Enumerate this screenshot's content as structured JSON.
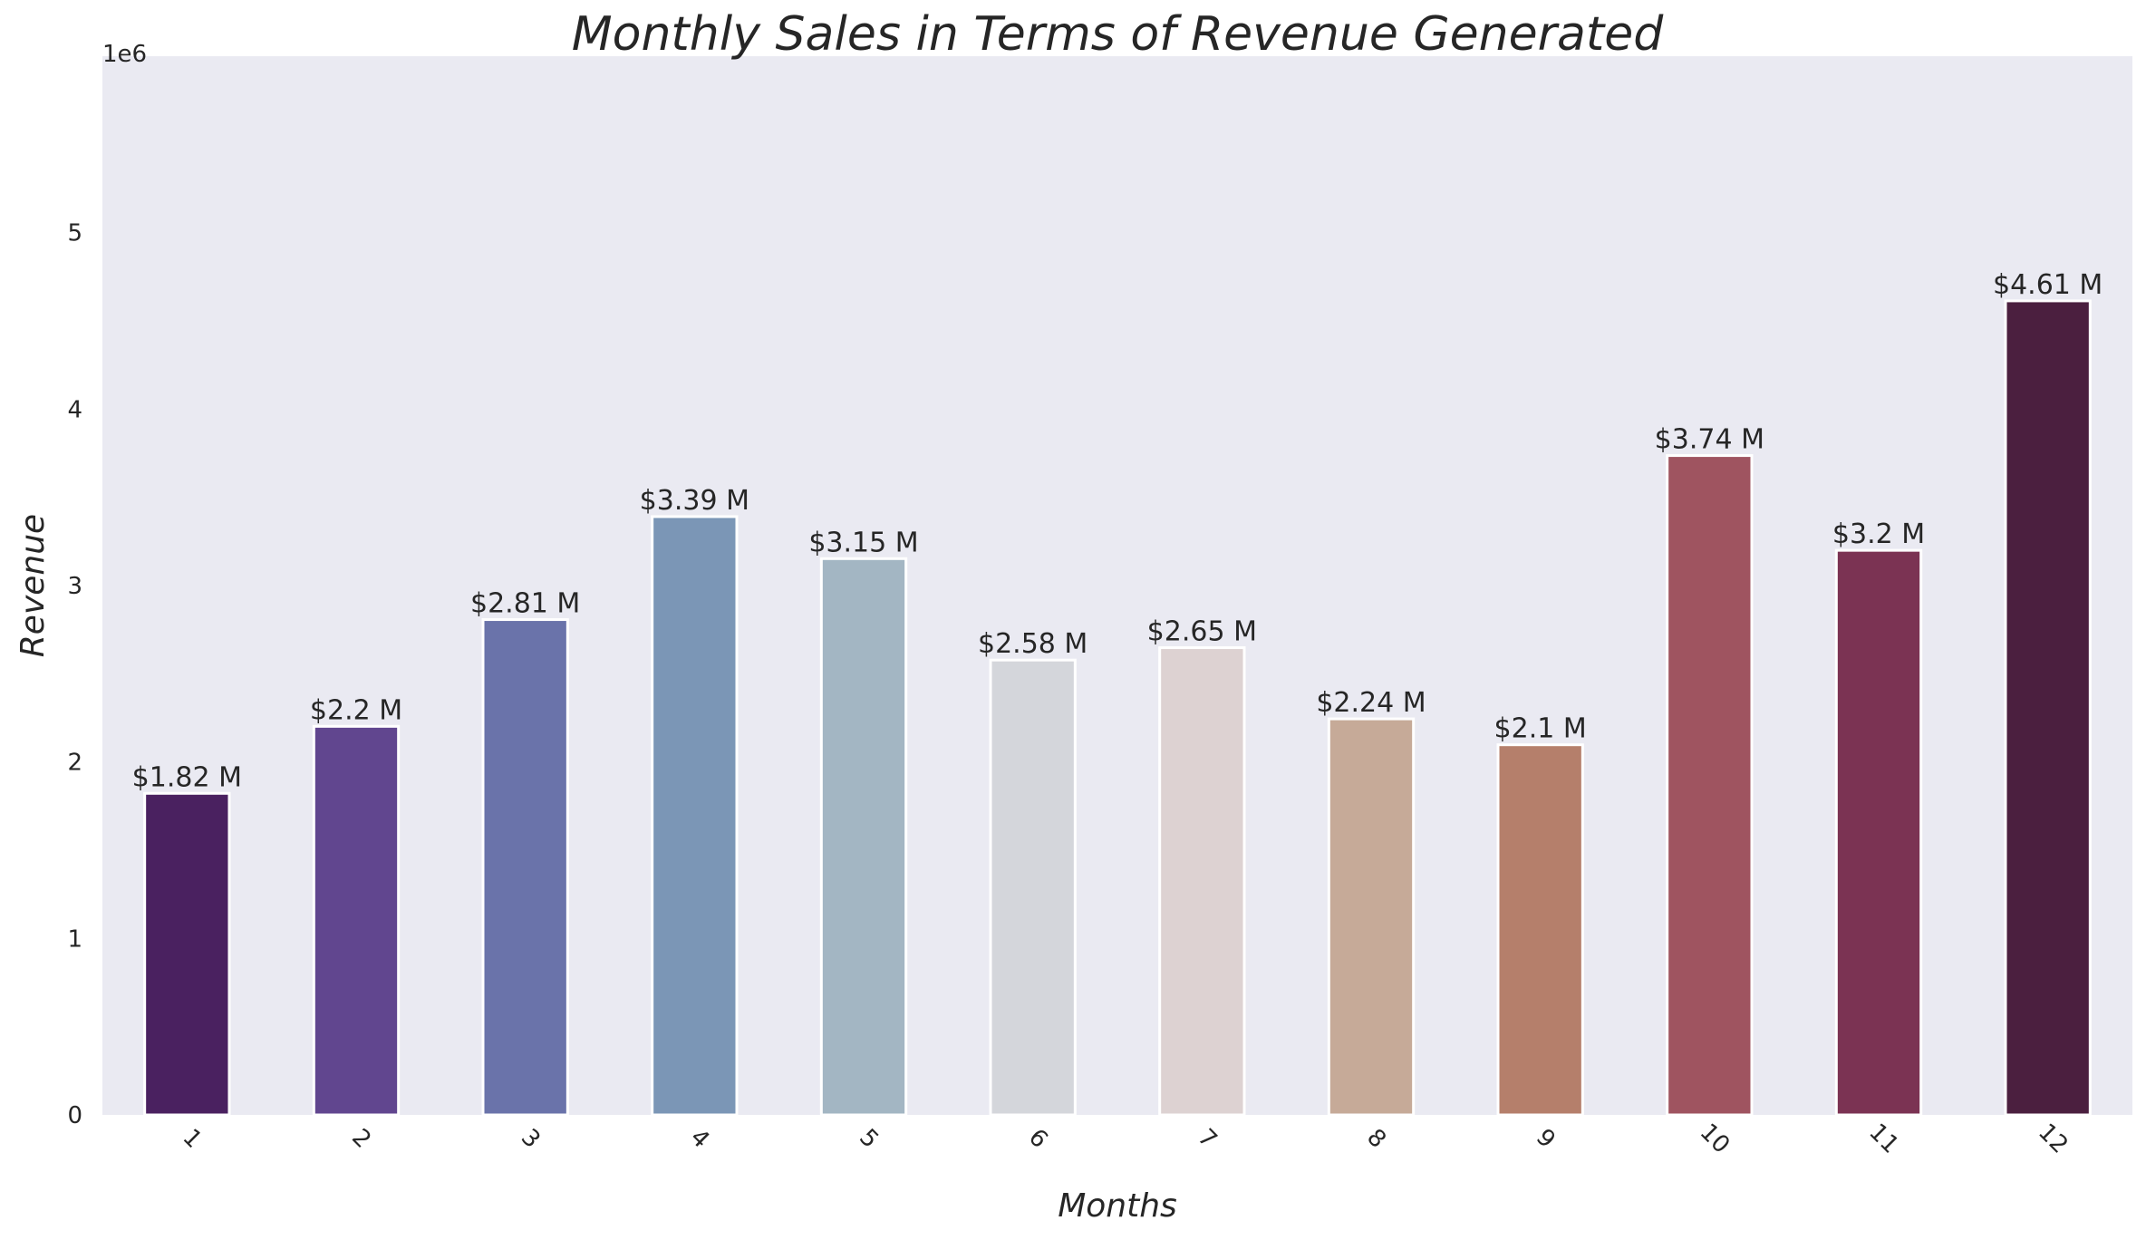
{
  "chart_data": {
    "type": "bar",
    "title": "Monthly Sales in Terms of Revenue Generated",
    "xlabel": "Months",
    "ylabel": "Revenue",
    "y_offset_label": "1e6",
    "categories": [
      "1",
      "2",
      "3",
      "4",
      "5",
      "6",
      "7",
      "8",
      "9",
      "10",
      "11",
      "12"
    ],
    "values": [
      1822257,
      2202022,
      2807100,
      3390670,
      3152607,
      2577802,
      2647776,
      2244468,
      2097560,
      3736727,
      3199603,
      4613443
    ],
    "data_labels": [
      "$1.82 M",
      "$2.2 M",
      "$2.81 M",
      "$3.39 M",
      "$3.15 M",
      "$2.58 M",
      "$2.65 M",
      "$2.24 M",
      "$2.1 M",
      "$3.74 M",
      "$3.2 M",
      "$4.61 M"
    ],
    "colors": [
      "#4a2160",
      "#61468f",
      "#6a73aa",
      "#7b96b6",
      "#a3b6c3",
      "#d4d6db",
      "#ddd2d2",
      "#c6aa98",
      "#b57f6b",
      "#9f5460",
      "#7b3353",
      "#4b1f3f"
    ],
    "yticks": [
      0,
      1,
      2,
      3,
      4,
      5
    ],
    "ylim": [
      0,
      6.0
    ],
    "grid": false,
    "background": "#eaeaf2"
  }
}
